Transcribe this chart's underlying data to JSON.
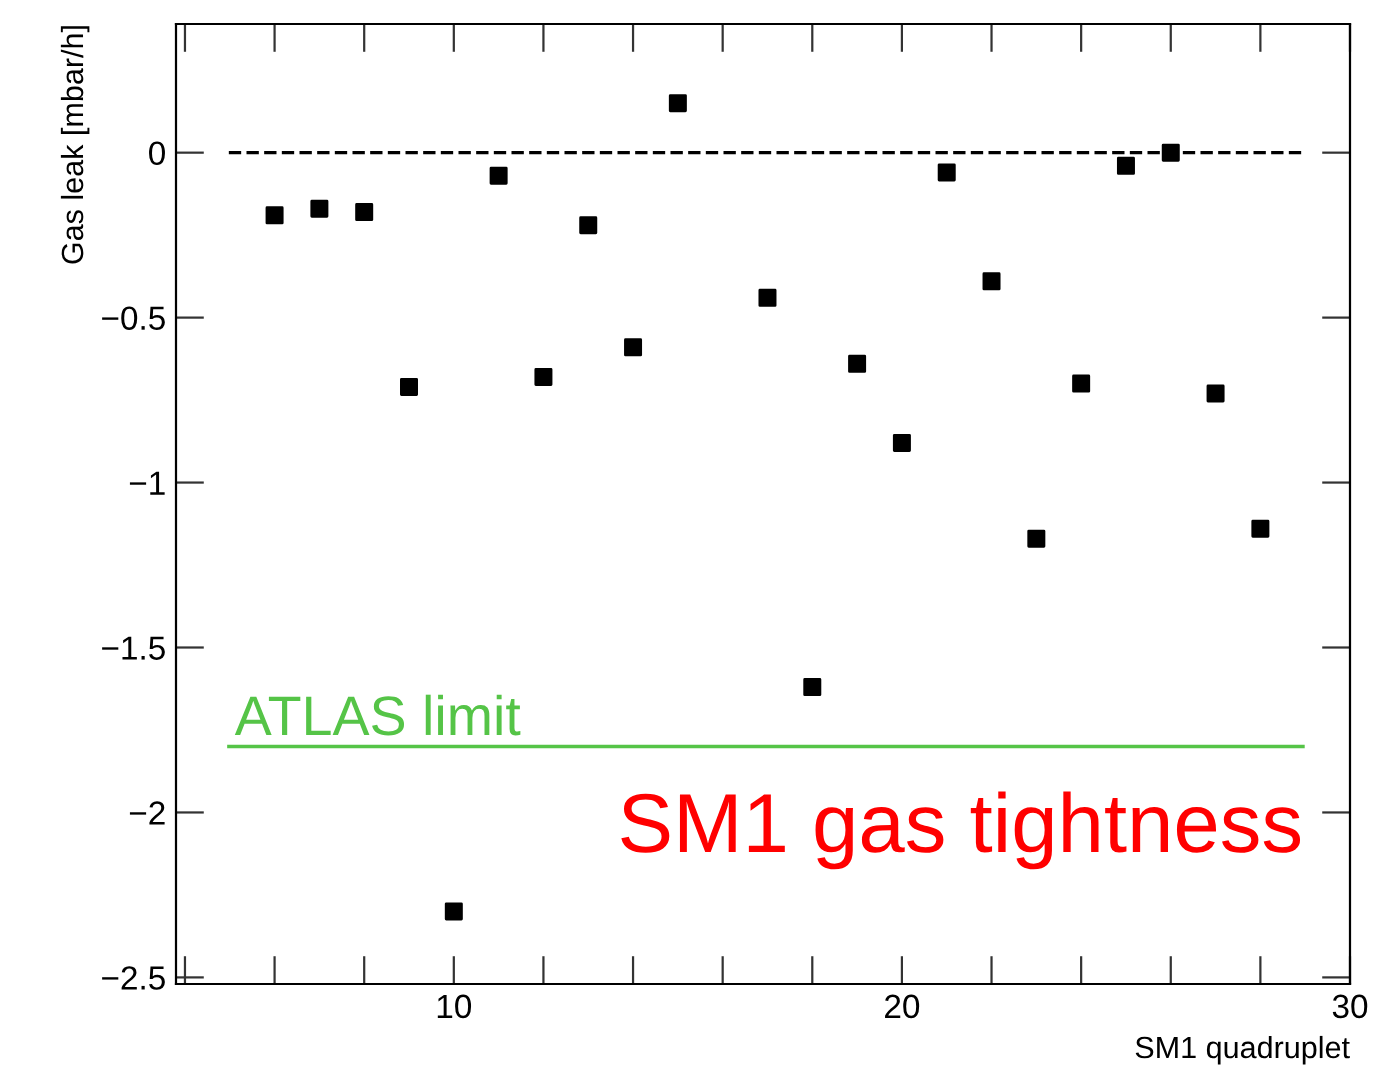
{
  "chart_data": {
    "type": "scatter",
    "xlabel": "SM1 quadruplet",
    "ylabel": "Gas leak [mbar/h]",
    "x": [
      6,
      7,
      8,
      9,
      10,
      11,
      12,
      13,
      14,
      15,
      17,
      18,
      19,
      20,
      21,
      22,
      23,
      24,
      25,
      26,
      27,
      28
    ],
    "series": [
      {
        "color": "#000000",
        "values": [
          -0.19,
          -0.17,
          -0.18,
          -0.71,
          -2.3,
          -0.07,
          -0.68,
          -0.22,
          -0.59,
          0.15,
          -0.44,
          -1.62,
          -0.64,
          -0.88,
          -0.06,
          -0.39,
          -1.17,
          -0.7,
          -0.04,
          0.0,
          -0.73,
          -1.14
        ]
      }
    ],
    "marker": "square",
    "xlim": [
      3.8,
      30
    ],
    "ylim": [
      -2.52,
      0.39
    ],
    "xticks": [
      {
        "value": 4,
        "label": null
      },
      {
        "value": 6,
        "label": null
      },
      {
        "value": 8,
        "label": null
      },
      10,
      {
        "value": 12,
        "label": null
      },
      {
        "value": 14,
        "label": null
      },
      {
        "value": 16,
        "label": null
      },
      {
        "value": 18,
        "label": null
      },
      20,
      {
        "value": 22,
        "label": null
      },
      {
        "value": 24,
        "label": null
      },
      {
        "value": 26,
        "label": null
      },
      {
        "value": 28,
        "label": null
      },
      30
    ],
    "yticks": [
      {
        "value": -2.5,
        "label": "−2.5"
      },
      {
        "value": -2,
        "label": "−2"
      },
      {
        "value": -1.5,
        "label": "−1.5"
      },
      {
        "value": -1,
        "label": "−1"
      },
      {
        "value": -0.5,
        "label": "−0.5"
      },
      0
    ],
    "ref_lines": [
      {
        "axis": "y",
        "value": 0,
        "color": "#000000",
        "line_style": "dashed"
      },
      {
        "axis": "y",
        "value": -1.8,
        "label": "ATLAS limit",
        "color": "#55c447",
        "line_style": "solid"
      }
    ],
    "annotations": [
      "SM1 gas tightness"
    ],
    "grid": false,
    "legend": false
  }
}
